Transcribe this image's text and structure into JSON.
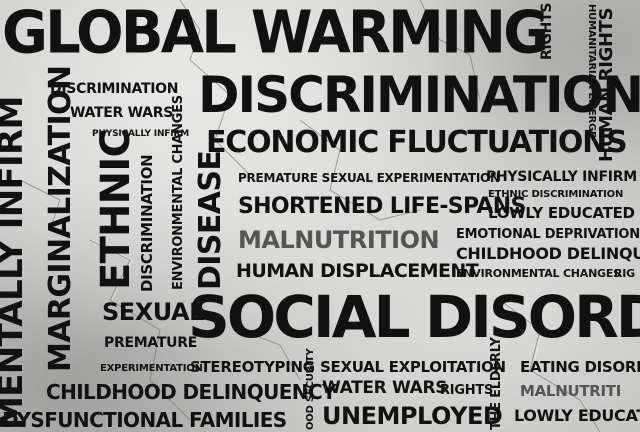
{
  "words": {
    "global_warming": "GLOBAL WARMING",
    "rights_top": "RIGHTS",
    "humanitarian_emergency": "HUMANITARIAN EMERGE",
    "discrimination_small": "DISCRIMINATION",
    "discrimination_big": "DISCRIMINATION",
    "water_wars_left": "WATER WARS",
    "physically_infirm_small": "PHYSICALLY INFIRM",
    "mentally_infirm": "MENTALLY INFIRM",
    "marginalization": "MARGINALIZATION",
    "ethnic": "ETHNIC",
    "discrimination_vertical": "DISCRIMINATION",
    "environmental_changes_vertical": "ENVIRONMENTAL CHANGES",
    "disease": "DISEASE",
    "economic_fluctuations": "ECONOMIC FLUCTUATIONS",
    "human_rights_right": "HUMAN RIGHTS",
    "premature_sexual_experimentation": "PREMATURE SEXUAL EXPERIMENTATION",
    "physically_infirm_right": "PHYSICALLY INFIRM",
    "ethnic_discrimination": "ETHNIC DISCRIMINATION",
    "shortened_life_spans": "SHORTENED LIFE-SPANS",
    "lowly_educated_top": "LOWLY EDUCATED",
    "emotional_deprivation": "EMOTIONAL DEPRIVATION",
    "malnutrition": "MALNUTRITION",
    "childhood_delinquency_right": "CHILDHOOD DELINQUEN",
    "human_displacement": "HUMAN DISPLACEMENT",
    "environmental_changes_right": "ENVIRONMENTAL CHANGES",
    "rig": "RIG",
    "sexual": "SEXUAL",
    "premature": "PREMATURE",
    "social_disorder": "SOCIAL DISORDER",
    "experimentation": "EXPERIMENTATION",
    "stereotyping": "STEREOTYPING",
    "sexual_exploitation": "SEXUAL EXPLOITATION",
    "eating_disorder": "EATING DISORDE",
    "childhood_delinquency": "CHILDHOOD DELINQUENCY",
    "water_wars_bottom": "WATER WARS",
    "rights_bottom": "RIGHTS",
    "the_elderly": "THE ELDERLY",
    "malnutrition_small": "MALNUTRITI",
    "dysfunctional_families": "DYSFUNCTIONAL FAMILIES",
    "food_security": "OOD SECURITY",
    "unemployed": "UNEMPLOYED",
    "lowly_educated_bottom": "LOWLY EDUCAT"
  },
  "colors": {
    "ink": "#111111",
    "faded_ink": "#555555",
    "background": "#cfcfcd"
  }
}
